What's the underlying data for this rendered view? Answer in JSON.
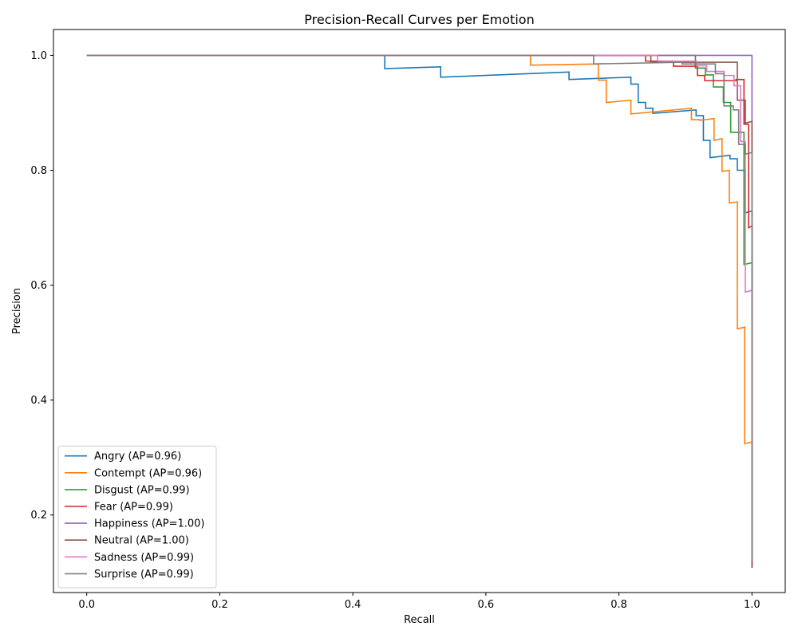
{
  "chart_data": {
    "type": "line",
    "title": "Precision-Recall Curves per Emotion",
    "xlabel": "Recall",
    "ylabel": "Precision",
    "xlim": [
      -0.05,
      1.05
    ],
    "ylim": [
      0.065,
      1.045
    ],
    "x_ticks": [
      0.0,
      0.2,
      0.4,
      0.6,
      0.8,
      1.0
    ],
    "x_tick_labels": [
      "0.0",
      "0.2",
      "0.4",
      "0.6",
      "0.8",
      "1.0"
    ],
    "y_ticks": [
      0.2,
      0.4,
      0.6,
      0.8,
      1.0
    ],
    "y_tick_labels": [
      "0.2",
      "0.4",
      "0.6",
      "0.8",
      "1.0"
    ],
    "grid": false,
    "legend_position": "lower-left",
    "series": [
      {
        "name": "Angry (AP=0.96)",
        "color": "#1f77b4",
        "points": [
          [
            0.0,
            1.0
          ],
          [
            0.448,
            1.0
          ],
          [
            0.448,
            0.977
          ],
          [
            0.532,
            0.98
          ],
          [
            0.532,
            0.962
          ],
          [
            0.725,
            0.971
          ],
          [
            0.725,
            0.958
          ],
          [
            0.818,
            0.962
          ],
          [
            0.818,
            0.95
          ],
          [
            0.829,
            0.95
          ],
          [
            0.829,
            0.918
          ],
          [
            0.84,
            0.918
          ],
          [
            0.84,
            0.908
          ],
          [
            0.851,
            0.908
          ],
          [
            0.851,
            0.899
          ],
          [
            0.916,
            0.905
          ],
          [
            0.916,
            0.895
          ],
          [
            0.927,
            0.895
          ],
          [
            0.927,
            0.852
          ],
          [
            0.937,
            0.852
          ],
          [
            0.937,
            0.822
          ],
          [
            0.967,
            0.826
          ],
          [
            0.967,
            0.82
          ],
          [
            0.978,
            0.82
          ],
          [
            0.978,
            0.8
          ],
          [
            0.99,
            0.8
          ],
          [
            0.99,
            0.726
          ],
          [
            1.0,
            0.729
          ],
          [
            1.0,
            0.12
          ]
        ]
      },
      {
        "name": "Contempt (AP=0.96)",
        "color": "#ff7f0e",
        "points": [
          [
            0.0,
            1.0
          ],
          [
            0.667,
            1.0
          ],
          [
            0.667,
            0.983
          ],
          [
            0.769,
            0.985
          ],
          [
            0.769,
            0.957
          ],
          [
            0.781,
            0.957
          ],
          [
            0.781,
            0.918
          ],
          [
            0.818,
            0.922
          ],
          [
            0.818,
            0.898
          ],
          [
            0.909,
            0.908
          ],
          [
            0.909,
            0.888
          ],
          [
            0.922,
            0.888
          ],
          [
            0.922,
            0.887
          ],
          [
            0.943,
            0.89
          ],
          [
            0.943,
            0.852
          ],
          [
            0.955,
            0.855
          ],
          [
            0.955,
            0.798
          ],
          [
            0.966,
            0.8
          ],
          [
            0.966,
            0.743
          ],
          [
            0.978,
            0.745
          ],
          [
            0.978,
            0.524
          ],
          [
            0.989,
            0.527
          ],
          [
            0.989,
            0.324
          ],
          [
            1.0,
            0.327
          ],
          [
            1.0,
            0.11
          ]
        ]
      },
      {
        "name": "Disgust (AP=0.99)",
        "color": "#2ca02c",
        "points": [
          [
            0.0,
            1.0
          ],
          [
            0.915,
            1.0
          ],
          [
            0.915,
            0.978
          ],
          [
            0.93,
            0.978
          ],
          [
            0.93,
            0.966
          ],
          [
            0.942,
            0.966
          ],
          [
            0.942,
            0.945
          ],
          [
            0.957,
            0.945
          ],
          [
            0.957,
            0.918
          ],
          [
            0.968,
            0.918
          ],
          [
            0.968,
            0.866
          ],
          [
            0.988,
            0.866
          ],
          [
            0.988,
            0.636
          ],
          [
            1.0,
            0.639
          ],
          [
            1.0,
            0.12
          ]
        ]
      },
      {
        "name": "Fear (AP=0.99)",
        "color": "#d62728",
        "points": [
          [
            0.0,
            1.0
          ],
          [
            0.84,
            1.0
          ],
          [
            0.84,
            0.99
          ],
          [
            0.882,
            0.99
          ],
          [
            0.882,
            0.981
          ],
          [
            0.918,
            0.981
          ],
          [
            0.918,
            0.965
          ],
          [
            0.929,
            0.965
          ],
          [
            0.929,
            0.956
          ],
          [
            0.976,
            0.956
          ],
          [
            0.976,
            0.958
          ],
          [
            0.988,
            0.958
          ],
          [
            0.988,
            0.88
          ],
          [
            0.995,
            0.88
          ],
          [
            0.995,
            0.7
          ],
          [
            1.0,
            0.703
          ],
          [
            1.0,
            0.108
          ]
        ]
      },
      {
        "name": "Happiness (AP=1.00)",
        "color": "#9467bd",
        "points": [
          [
            0.0,
            1.0
          ],
          [
            1.0,
            1.0
          ],
          [
            1.0,
            0.11
          ]
        ]
      },
      {
        "name": "Neutral (AP=1.00)",
        "color": "#8c564b",
        "points": [
          [
            0.0,
            1.0
          ],
          [
            0.848,
            1.0
          ],
          [
            0.848,
            0.988
          ],
          [
            0.978,
            0.988
          ],
          [
            0.978,
            0.922
          ],
          [
            0.99,
            0.922
          ],
          [
            0.99,
            0.882
          ],
          [
            1.0,
            0.885
          ],
          [
            1.0,
            0.108
          ]
        ]
      },
      {
        "name": "Sadness (AP=0.99)",
        "color": "#e377c2",
        "points": [
          [
            0.0,
            1.0
          ],
          [
            0.858,
            1.0
          ],
          [
            0.858,
            0.99
          ],
          [
            0.917,
            0.99
          ],
          [
            0.917,
            0.982
          ],
          [
            0.932,
            0.982
          ],
          [
            0.932,
            0.972
          ],
          [
            0.958,
            0.972
          ],
          [
            0.958,
            0.965
          ],
          [
            0.973,
            0.965
          ],
          [
            0.973,
            0.947
          ],
          [
            0.983,
            0.947
          ],
          [
            0.983,
            0.85
          ],
          [
            0.99,
            0.85
          ],
          [
            0.99,
            0.588
          ],
          [
            1.0,
            0.591
          ],
          [
            1.0,
            0.12
          ]
        ]
      },
      {
        "name": "Surprise (AP=0.99)",
        "color": "#7f7f7f",
        "points": [
          [
            0.0,
            1.0
          ],
          [
            0.762,
            1.0
          ],
          [
            0.762,
            0.985
          ],
          [
            0.895,
            0.988
          ],
          [
            0.895,
            0.985
          ],
          [
            0.945,
            0.985
          ],
          [
            0.945,
            0.968
          ],
          [
            0.958,
            0.968
          ],
          [
            0.958,
            0.912
          ],
          [
            0.972,
            0.912
          ],
          [
            0.972,
            0.905
          ],
          [
            0.98,
            0.905
          ],
          [
            0.98,
            0.845
          ],
          [
            0.99,
            0.845
          ],
          [
            0.99,
            0.828
          ],
          [
            1.0,
            0.831
          ],
          [
            1.0,
            0.12
          ]
        ]
      }
    ]
  }
}
